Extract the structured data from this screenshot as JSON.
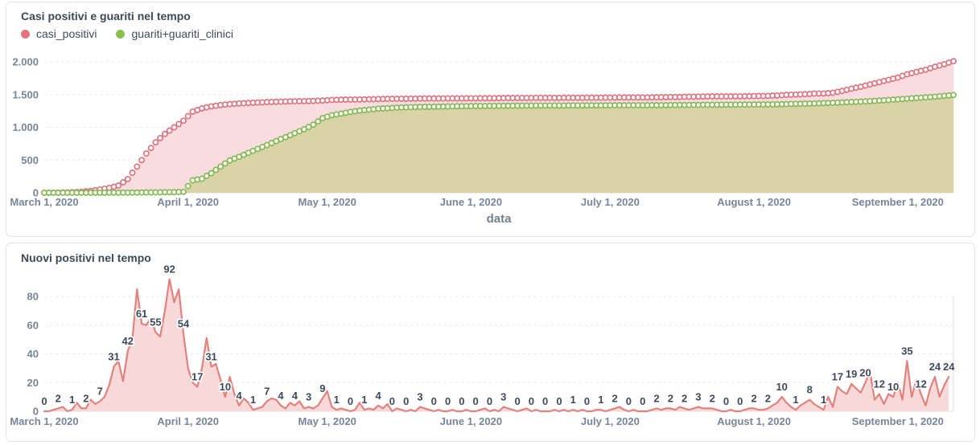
{
  "charts": {
    "top": {
      "title": "Casi positivi e guariti nel tempo",
      "xlabel": "data",
      "legend": [
        {
          "label": "casi_positivi",
          "color": "#e5737f"
        },
        {
          "label": "guariti+guariti_clinici",
          "color": "#8bbd52"
        }
      ]
    },
    "bottom": {
      "title": "Nuovi positivi nel tempo"
    }
  },
  "chart_data": [
    {
      "type": "line",
      "title": "Casi positivi e guariti nel tempo",
      "xlabel": "data",
      "ylabel": "",
      "ylim": [
        0,
        2200
      ],
      "grid": "dashed-horizontal",
      "legend_position": "top-left",
      "x_start_date": "March 1, 2020",
      "x_ticks": [
        {
          "label": "March 1, 2020",
          "day": 0
        },
        {
          "label": "April 1, 2020",
          "day": 31
        },
        {
          "label": "May 1, 2020",
          "day": 61
        },
        {
          "label": "June 1, 2020",
          "day": 92
        },
        {
          "label": "July 1, 2020",
          "day": 122
        },
        {
          "label": "August 1, 2020",
          "day": 153
        },
        {
          "label": "September 1, 2020",
          "day": 184
        }
      ],
      "y_ticks": [
        {
          "label": "0",
          "value": 0
        },
        {
          "label": "500",
          "value": 500
        },
        {
          "label": "1.000",
          "value": 1000
        },
        {
          "label": "1.500",
          "value": 1500
        },
        {
          "label": "2.000",
          "value": 2000
        }
      ],
      "series": [
        {
          "name": "casi_positivi",
          "color": "#dd7480",
          "fill": "#f9dce0",
          "marker": "open-circle",
          "day_step": 2,
          "values": [
            0,
            2,
            5,
            8,
            15,
            28,
            50,
            75,
            110,
            210,
            400,
            600,
            770,
            900,
            1000,
            1100,
            1240,
            1290,
            1320,
            1340,
            1355,
            1365,
            1372,
            1378,
            1385,
            1390,
            1394,
            1398,
            1400,
            1403,
            1408,
            1418,
            1422,
            1424,
            1426,
            1428,
            1432,
            1434,
            1436,
            1437,
            1438,
            1440,
            1441,
            1441,
            1442,
            1442,
            1443,
            1444,
            1444,
            1445,
            1448,
            1448,
            1449,
            1450,
            1450,
            1450,
            1451,
            1452,
            1452,
            1453,
            1453,
            1454,
            1456,
            1456,
            1456,
            1457,
            1459,
            1461,
            1463,
            1465,
            1467,
            1470,
            1472,
            1473,
            1473,
            1474,
            1476,
            1478,
            1480,
            1486,
            1496,
            1500,
            1507,
            1515,
            1517,
            1527,
            1556,
            1590,
            1620,
            1655,
            1690,
            1725,
            1760,
            1810,
            1845,
            1880,
            1925,
            1965,
            2010
          ]
        },
        {
          "name": "guariti+guariti_clinici",
          "color": "#85b954",
          "fill": "#d9d3a7",
          "marker": "open-circle",
          "day_step": 2,
          "values": [
            0,
            0,
            0,
            0,
            0,
            1,
            1,
            2,
            2,
            3,
            4,
            5,
            6,
            8,
            10,
            15,
            190,
            215,
            300,
            400,
            495,
            550,
            610,
            670,
            730,
            790,
            850,
            910,
            970,
            1040,
            1140,
            1185,
            1210,
            1235,
            1255,
            1270,
            1285,
            1292,
            1300,
            1306,
            1310,
            1313,
            1316,
            1318,
            1320,
            1322,
            1324,
            1326,
            1327,
            1328,
            1329,
            1330,
            1331,
            1332,
            1332,
            1333,
            1333,
            1334,
            1334,
            1335,
            1335,
            1336,
            1336,
            1337,
            1337,
            1338,
            1338,
            1339,
            1340,
            1341,
            1342,
            1343,
            1344,
            1345,
            1346,
            1347,
            1348,
            1349,
            1350,
            1352,
            1355,
            1358,
            1361,
            1365,
            1369,
            1374,
            1380,
            1386,
            1393,
            1400,
            1408,
            1417,
            1427,
            1437,
            1448,
            1458,
            1468,
            1481,
            1493
          ]
        }
      ]
    },
    {
      "type": "area",
      "title": "Nuovi positivi nel tempo",
      "xlabel": "",
      "ylabel": "",
      "ylim": [
        0,
        92
      ],
      "grid": "dashed-horizontal",
      "x_start_date": "March 1, 2020",
      "x_ticks": [
        {
          "label": "March 1, 2020",
          "day": 0
        },
        {
          "label": "April 1, 2020",
          "day": 31
        },
        {
          "label": "May 1, 2020",
          "day": 61
        },
        {
          "label": "June 1, 2020",
          "day": 92
        },
        {
          "label": "July 1, 2020",
          "day": 122
        },
        {
          "label": "August 1, 2020",
          "day": 153
        },
        {
          "label": "September 1, 2020",
          "day": 184
        }
      ],
      "y_ticks": [
        {
          "label": "0",
          "value": 0
        },
        {
          "label": "20",
          "value": 20
        },
        {
          "label": "40",
          "value": 40
        },
        {
          "label": "60",
          "value": 60
        },
        {
          "label": "80",
          "value": 80
        }
      ],
      "series": [
        {
          "name": "nuovi_positivi",
          "color": "#e3817d",
          "fill": "#f8d9da",
          "day_step": 1,
          "values": [
            0,
            0,
            1,
            2,
            3,
            0,
            1,
            6,
            2,
            2,
            8,
            5,
            7,
            10,
            18,
            31,
            35,
            21,
            42,
            50,
            85,
            61,
            60,
            65,
            55,
            52,
            70,
            92,
            76,
            85,
            54,
            30,
            20,
            17,
            30,
            51,
            31,
            33,
            22,
            10,
            24,
            12,
            4,
            9,
            6,
            1,
            2,
            3,
            7,
            9,
            8,
            4,
            2,
            6,
            4,
            7,
            2,
            3,
            2,
            4,
            9,
            14,
            3,
            1,
            2,
            1,
            0,
            1,
            6,
            1,
            2,
            1,
            4,
            2,
            5,
            0,
            2,
            1,
            0,
            1,
            0,
            3,
            2,
            1,
            0,
            1,
            0,
            0,
            1,
            0,
            0,
            1,
            0,
            0,
            1,
            2,
            0,
            1,
            0,
            3,
            2,
            1,
            0,
            1,
            2,
            0,
            1,
            0,
            0,
            0,
            1,
            0,
            1,
            0,
            1,
            0,
            1,
            0,
            0,
            1,
            1,
            0,
            1,
            2,
            3,
            1,
            0,
            1,
            0,
            0,
            0,
            1,
            2,
            1,
            2,
            2,
            1,
            3,
            2,
            1,
            2,
            3,
            2,
            2,
            2,
            1,
            0,
            0,
            1,
            0,
            0,
            1,
            2,
            2,
            1,
            1,
            2,
            4,
            6,
            10,
            6,
            3,
            1,
            4,
            6,
            8,
            5,
            3,
            1,
            10,
            3,
            17,
            14,
            12,
            19,
            16,
            13,
            20,
            28,
            8,
            12,
            5,
            12,
            10,
            20,
            8,
            35,
            10,
            22,
            12,
            4,
            16,
            24,
            10,
            18,
            24
          ]
        }
      ],
      "point_labels": {
        "day_step": 3,
        "values": [
          0,
          2,
          1,
          2,
          7,
          31,
          42,
          61,
          55,
          92,
          54,
          17,
          31,
          10,
          4,
          1,
          7,
          4,
          4,
          3,
          9,
          1,
          0,
          1,
          4,
          0,
          0,
          3,
          0,
          0,
          0,
          0,
          0,
          3,
          0,
          0,
          0,
          0,
          1,
          0,
          1,
          2,
          0,
          0,
          2,
          2,
          2,
          3,
          2,
          0,
          0,
          2,
          2,
          10,
          1,
          8,
          1,
          17,
          19,
          20,
          12,
          10,
          35,
          12,
          24,
          24
        ]
      }
    }
  ]
}
